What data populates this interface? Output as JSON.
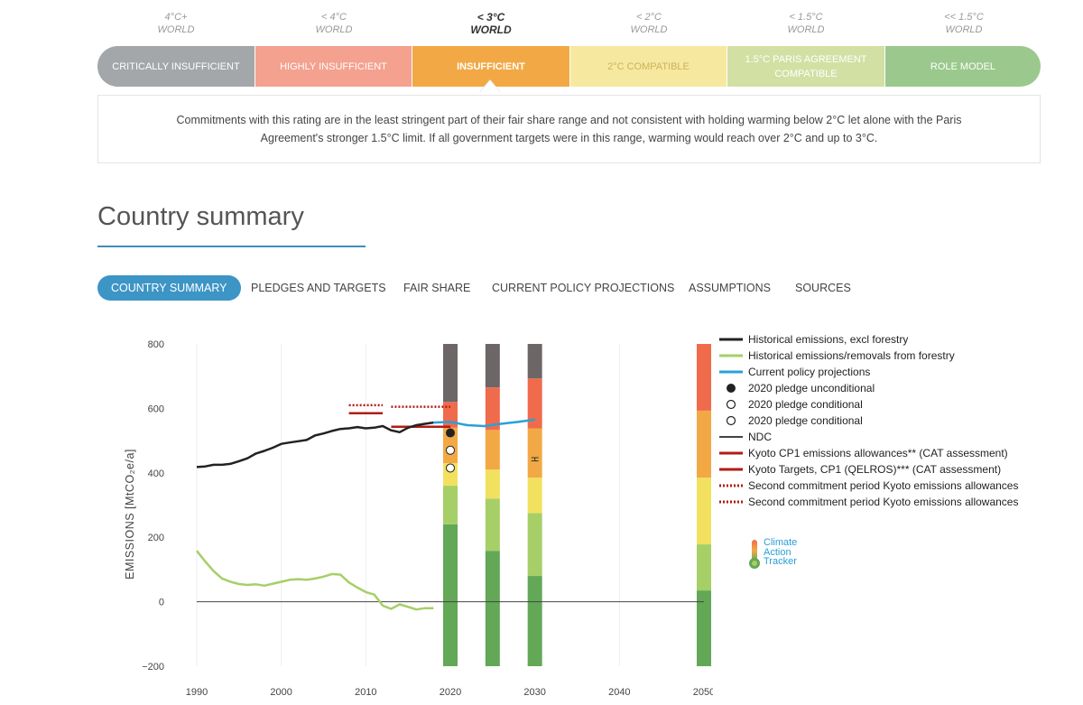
{
  "temperatures": [
    {
      "temp": "4°C+",
      "scope": "WORLD"
    },
    {
      "temp": "< 4°C",
      "scope": "WORLD"
    },
    {
      "temp": "< 3°C",
      "scope": "WORLD"
    },
    {
      "temp": "< 2°C",
      "scope": "WORLD"
    },
    {
      "temp": "< 1.5°C",
      "scope": "WORLD"
    },
    {
      "temp": "<< 1.5°C",
      "scope": "WORLD"
    }
  ],
  "ratings": [
    {
      "label": "CRITICALLY INSUFFICIENT",
      "color": "#a3a7aa"
    },
    {
      "label": "HIGHLY INSUFFICIENT",
      "color": "#f4a18f"
    },
    {
      "label": "INSUFFICIENT",
      "color": "#f2a945"
    },
    {
      "label": "2°C COMPATIBLE",
      "color": "#f7e8a0"
    },
    {
      "label": "1.5°C PARIS AGREEMENT COMPATIBLE",
      "color": "#d2e0a4"
    },
    {
      "label": "ROLE MODEL",
      "color": "#9bc98d"
    }
  ],
  "rating_description": "Commitments with this rating are in the least stringent part of their fair share range and not consistent with holding warming below 2°C let alone with the Paris Agreement's stronger 1.5°C limit. If all government targets were in this range, warming would reach over 2°C and up to 3°C.",
  "section_title": "Country summary",
  "tabs": [
    "COUNTRY SUMMARY",
    "PLEDGES AND TARGETS",
    "FAIR SHARE",
    "CURRENT POLICY PROJECTIONS",
    "ASSUMPTIONS",
    "SOURCES"
  ],
  "legend": [
    "Historical emissions, excl forestry",
    "Historical emissions/removals from forestry",
    "Current policy projections",
    "2020 pledge unconditional",
    "2020 pledge conditional",
    "2020 pledge conditional",
    "NDC",
    "Kyoto CP1 emissions allowances** (CAT assessment)",
    "Kyoto Targets, CP1 (QELROS)*** (CAT assessment)",
    "Second commitment period Kyoto emissions allowances",
    "Second commitment period Kyoto emissions allowances"
  ],
  "logo": {
    "line1": "Climate",
    "line2": "Action",
    "line3": "Tracker"
  },
  "chart_data": {
    "type": "line",
    "ylabel": "EMISSIONS [MtCO₂e/a]",
    "ylim": [
      -200,
      800
    ],
    "xlim": [
      1990,
      2050
    ],
    "yticks": [
      800,
      600,
      400,
      200,
      0,
      -200
    ],
    "xticks": [
      1990,
      2000,
      2010,
      2020,
      2030,
      2040,
      2050
    ],
    "series": [
      {
        "name": "Historical emissions, excl forestry",
        "color": "#222222",
        "x": [
          1990,
          1991,
          1992,
          1993,
          1994,
          1995,
          1996,
          1997,
          1998,
          1999,
          2000,
          2001,
          2002,
          2003,
          2004,
          2005,
          2006,
          2007,
          2008,
          2009,
          2010,
          2011,
          2012,
          2013,
          2014,
          2015,
          2016,
          2017,
          2018
        ],
        "values": [
          418,
          420,
          425,
          425,
          428,
          436,
          445,
          460,
          468,
          478,
          490,
          494,
          498,
          502,
          516,
          522,
          530,
          536,
          538,
          542,
          538,
          540,
          545,
          532,
          526,
          540,
          548,
          552,
          556
        ]
      },
      {
        "name": "Historical emissions/removals from forestry",
        "color": "#a6cf68",
        "x": [
          1990,
          1991,
          1992,
          1993,
          1994,
          1995,
          1996,
          1997,
          1998,
          1999,
          2000,
          2001,
          2002,
          2003,
          2004,
          2005,
          2006,
          2007,
          2008,
          2009,
          2010,
          2011,
          2012,
          2013,
          2014,
          2015,
          2016,
          2017,
          2018
        ],
        "values": [
          158,
          125,
          95,
          72,
          62,
          55,
          52,
          54,
          50,
          56,
          62,
          68,
          70,
          68,
          72,
          78,
          86,
          84,
          60,
          44,
          30,
          22,
          -12,
          -22,
          -8,
          -16,
          -24,
          -20,
          -20
        ]
      },
      {
        "name": "Current policy projections",
        "color": "#2aa0d8",
        "x": [
          2018,
          2020,
          2022,
          2024,
          2026,
          2028,
          2030
        ],
        "values": [
          556,
          558,
          548,
          545,
          552,
          558,
          565
        ]
      }
    ],
    "pledges": [
      {
        "name": "2020 pledge unconditional",
        "x": 2020,
        "value": 524,
        "fill": "#222222"
      },
      {
        "name": "2020 pledge conditional",
        "x": 2020,
        "value": 470,
        "fill": "#ffffff"
      },
      {
        "name": "2020 pledge conditional",
        "x": 2020,
        "value": 415,
        "fill": "#ffffff"
      }
    ],
    "ndc_range": {
      "x": 2030,
      "low": 437,
      "high": 447
    },
    "kyoto_cp1": {
      "color": "#b01c16",
      "allowances": {
        "x0": 2008,
        "x1": 2012,
        "value": 585
      },
      "qelros": {
        "x0": 2013,
        "x1": 2020,
        "value": 543
      }
    },
    "kyoto_cp2": {
      "color": "#b01c16",
      "segments": [
        {
          "x0": 2008,
          "x1": 2012,
          "value": 610
        },
        {
          "x0": 2013,
          "x1": 2020,
          "value": 605
        }
      ]
    },
    "rating_bars": {
      "colors": [
        "#62a857",
        "#a6cf68",
        "#f2e15f",
        "#f2a945",
        "#ef6b4c",
        "#6d6667"
      ],
      "bars": [
        {
          "year": 2020,
          "bounds": [
            -200,
            240,
            360,
            430,
            540,
            620,
            800
          ]
        },
        {
          "year": 2025,
          "bounds": [
            -200,
            158,
            320,
            410,
            533,
            665,
            800
          ]
        },
        {
          "year": 2030,
          "bounds": [
            -200,
            80,
            275,
            385,
            538,
            693,
            800
          ]
        },
        {
          "year": 2050,
          "bounds": [
            -200,
            35,
            178,
            385,
            593,
            800,
            800
          ]
        }
      ]
    }
  }
}
